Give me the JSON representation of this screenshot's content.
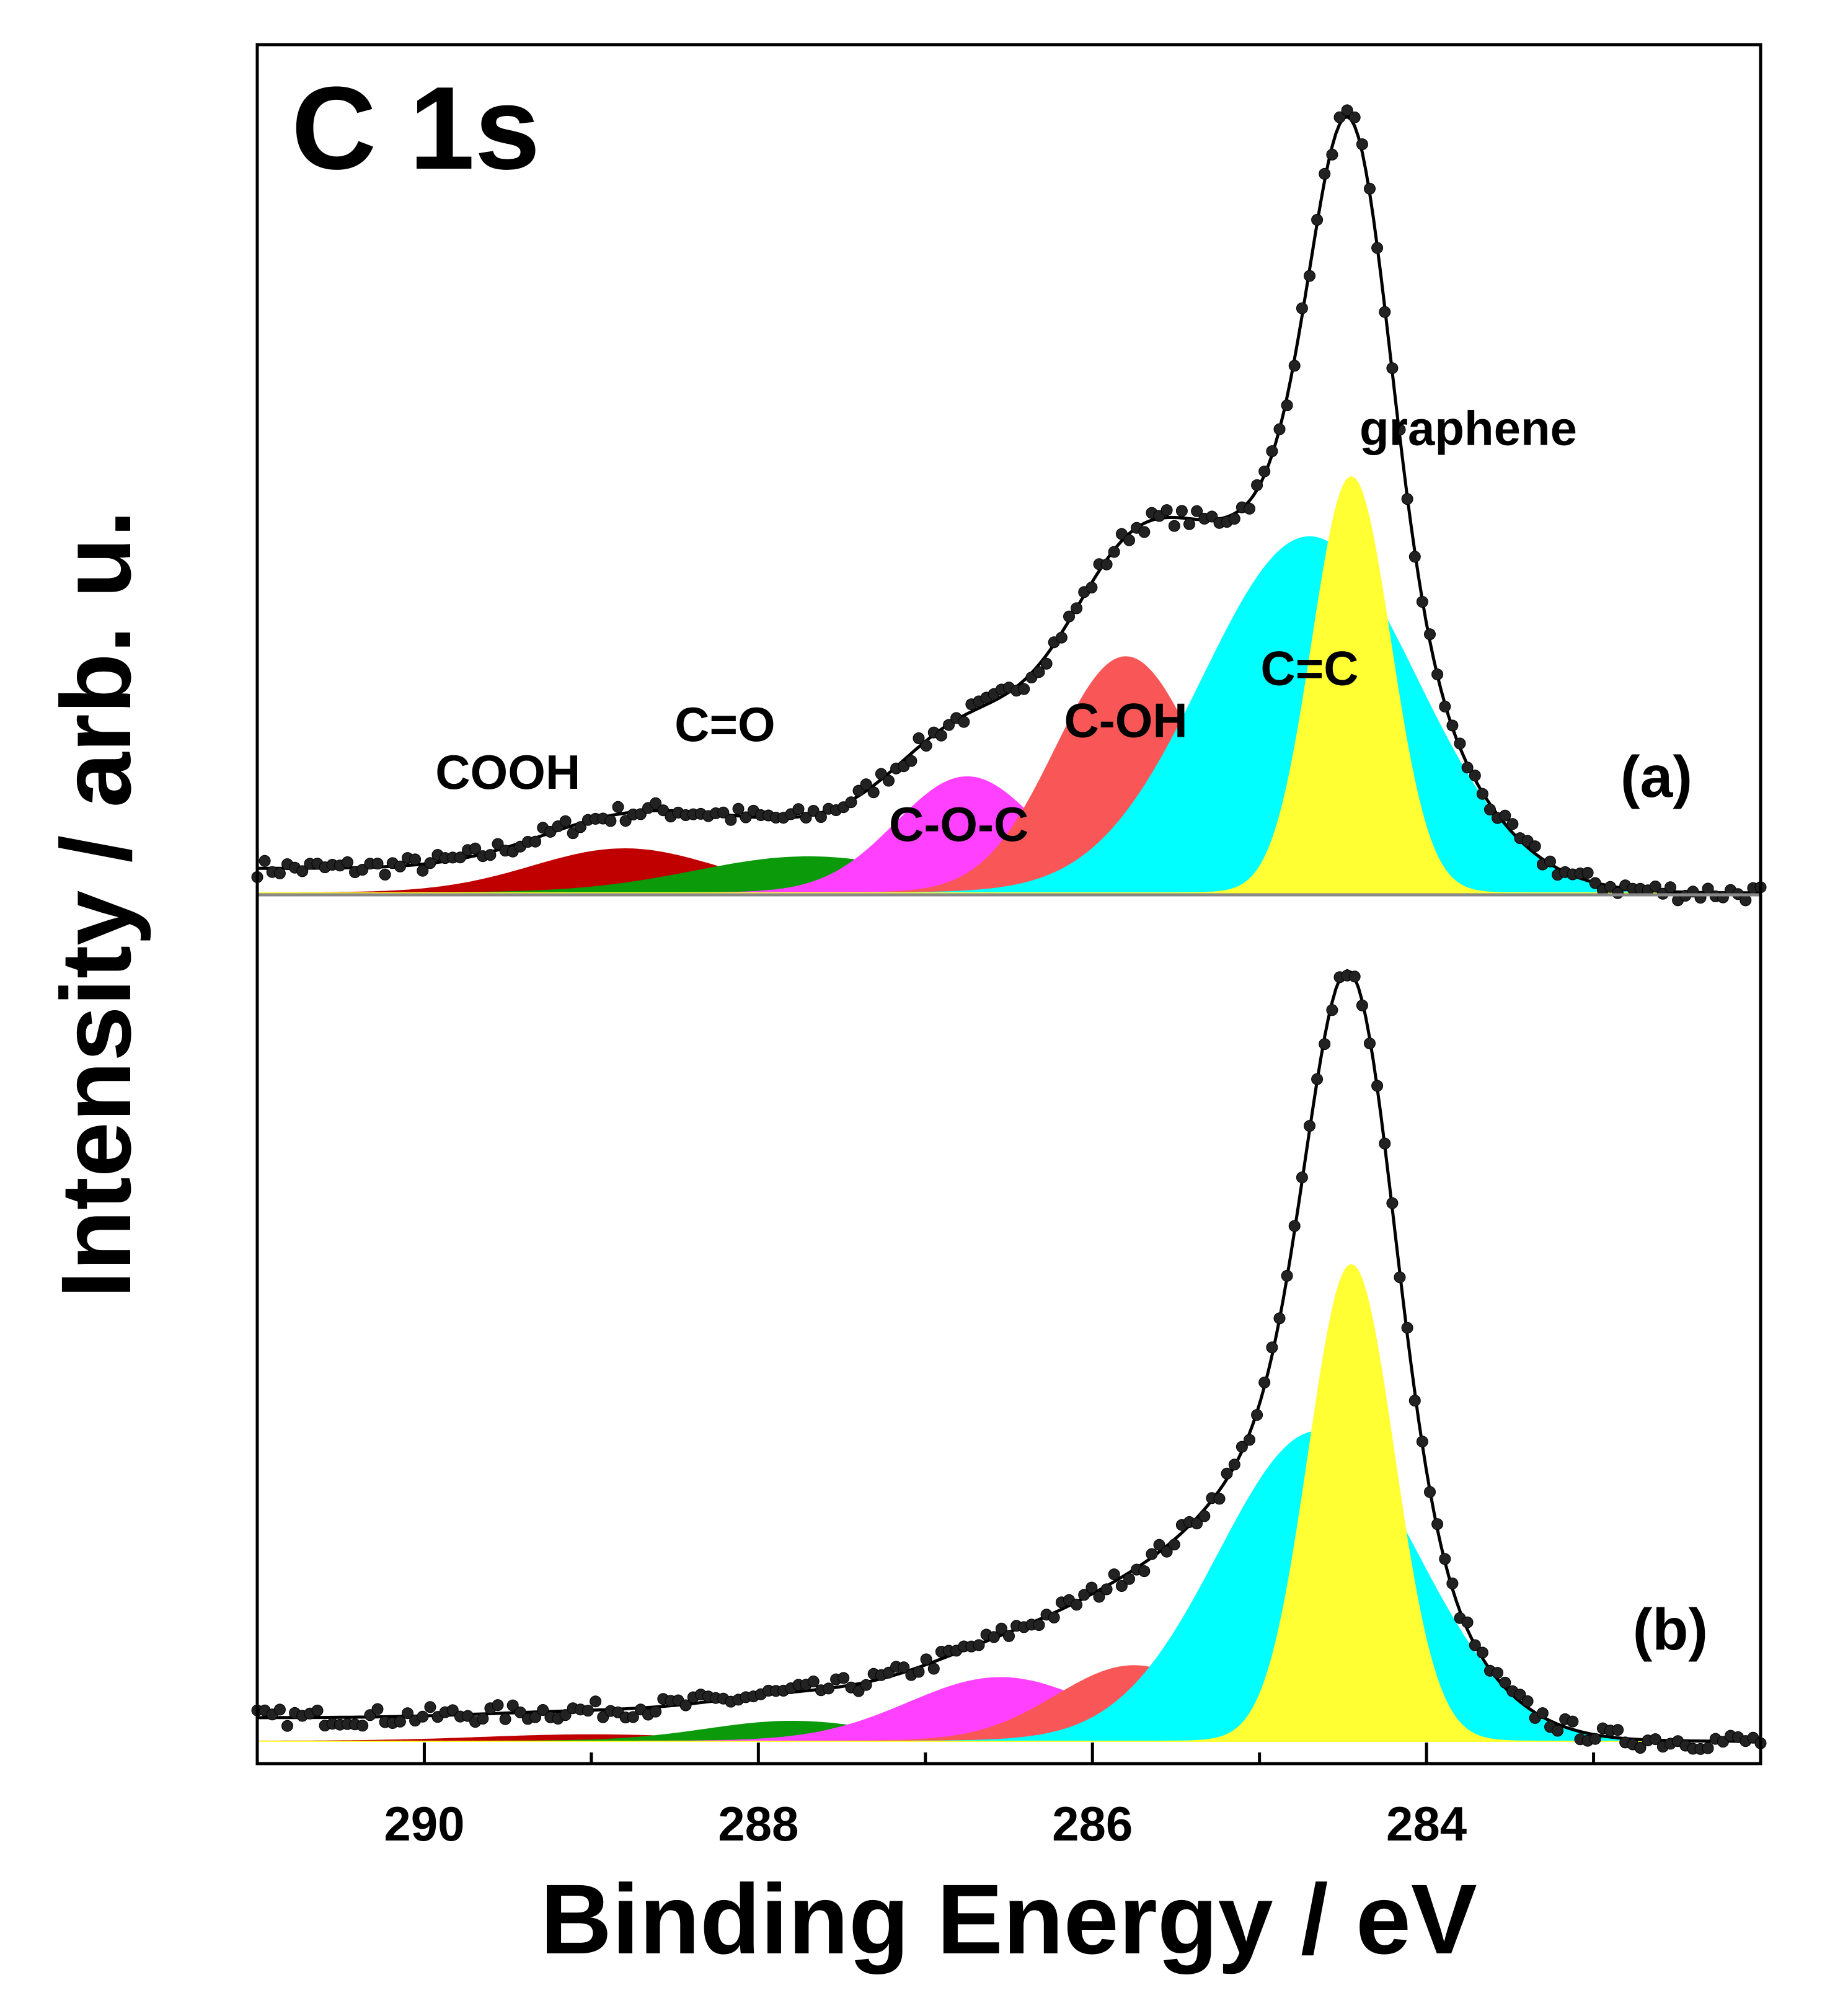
{
  "chart_data": {
    "type": "line",
    "title": "C 1s",
    "xlabel": "Binding Energy / eV",
    "ylabel": "Intensity / arb. u.",
    "xlim": [
      291.0,
      282.0
    ],
    "x_direction": "reversed",
    "xticks": [
      290,
      288,
      286,
      284
    ],
    "xtick_labels": [
      "290",
      "288",
      "286",
      "284"
    ],
    "grid": false,
    "panels": [
      {
        "id": "a",
        "label": "(a)",
        "ylim": [
          0,
          1.06
        ],
        "peaks": [
          {
            "name": "COOH",
            "label": "COOH",
            "center": 288.8,
            "fwhm": 1.3,
            "height": 0.055,
            "color": "#c00000",
            "label_pos": [
              289.5,
              0.13
            ]
          },
          {
            "name": "C=O",
            "label": "C=O",
            "center": 287.7,
            "fwhm": 1.6,
            "height": 0.045,
            "color": "#0a9a0a",
            "label_pos": [
              288.2,
              0.19
            ]
          },
          {
            "name": "C-O-C",
            "label": "C-O-C",
            "center": 286.75,
            "fwhm": 1.0,
            "height": 0.145,
            "color": "#ff40ff",
            "label_pos": [
              286.8,
              0.065
            ]
          },
          {
            "name": "C-OH",
            "label": "C-OH",
            "center": 285.8,
            "fwhm": 1.0,
            "height": 0.295,
            "color": "#f95757",
            "label_pos": [
              285.8,
              0.195
            ]
          },
          {
            "name": "C=C",
            "label": "C=C",
            "center": 284.7,
            "fwhm": 1.5,
            "height": 0.445,
            "color": "#00ffff",
            "label_pos": [
              284.7,
              0.26
            ]
          },
          {
            "name": "graphene",
            "label": "graphene",
            "center": 284.45,
            "fwhm": 0.55,
            "height": 0.52,
            "color": "#ffff33",
            "label_pos": [
              283.75,
              0.56
            ]
          }
        ],
        "fit_peak_intensity": 0.97
      },
      {
        "id": "b",
        "label": "(b)",
        "ylim": [
          0,
          1.06
        ],
        "peaks": [
          {
            "name": "COOH",
            "center": 289.0,
            "fwhm": 1.5,
            "height": 0.008,
            "color": "#c00000"
          },
          {
            "name": "C=O",
            "center": 287.8,
            "fwhm": 1.2,
            "height": 0.025,
            "color": "#0a9a0a"
          },
          {
            "name": "C-O-C",
            "center": 286.55,
            "fwhm": 1.3,
            "height": 0.08,
            "color": "#ff40ff"
          },
          {
            "name": "C-OH",
            "center": 285.75,
            "fwhm": 1.1,
            "height": 0.095,
            "color": "#f95757"
          },
          {
            "name": "C=C",
            "center": 284.65,
            "fwhm": 1.4,
            "height": 0.39,
            "color": "#00ffff"
          },
          {
            "name": "graphene",
            "center": 284.45,
            "fwhm": 0.6,
            "height": 0.6,
            "color": "#ffff33"
          }
        ],
        "fit_peak_intensity": 0.97
      }
    ]
  }
}
